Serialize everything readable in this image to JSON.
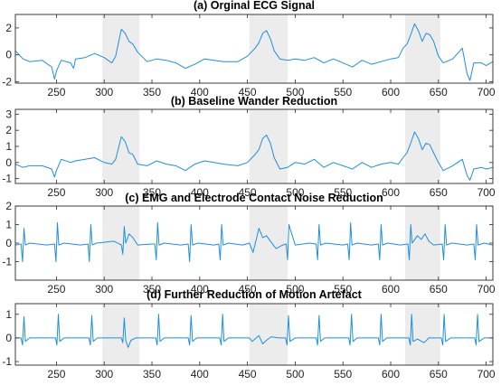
{
  "chart_data": [
    {
      "type": "line",
      "title": "(a) Orginal ECG Signal",
      "xlim": [
        207,
        707
      ],
      "ylim": [
        -2.1,
        3.0
      ],
      "xticks": [
        250,
        300,
        350,
        400,
        450,
        500,
        550,
        600,
        650,
        700
      ],
      "yticks": [
        -2,
        0,
        2
      ],
      "shaded_regions": [
        [
          298,
          337
        ],
        [
          452,
          492
        ],
        [
          615,
          652
        ]
      ],
      "grid": false,
      "series": [
        {
          "color": "#1f8fdc",
          "x": [
            207,
            215,
            222,
            235,
            245,
            248,
            250,
            255,
            265,
            268,
            270,
            280,
            290,
            300,
            308,
            312,
            318,
            322,
            326,
            330,
            335,
            345,
            355,
            365,
            375,
            385,
            395,
            405,
            415,
            425,
            440,
            450,
            458,
            462,
            466,
            470,
            474,
            478,
            484,
            492,
            500,
            510,
            520,
            530,
            540,
            550,
            560,
            570,
            580,
            590,
            600,
            608,
            613,
            617,
            621,
            625,
            629,
            633,
            637,
            641,
            645,
            650,
            655,
            665,
            675,
            680,
            683,
            687,
            695,
            700,
            707
          ],
          "y": [
            0.3,
            -0.3,
            -0.5,
            -0.4,
            -0.9,
            -1.8,
            -1.2,
            -0.4,
            -0.6,
            -1.0,
            -0.3,
            -0.2,
            0.1,
            -0.2,
            -0.6,
            -0.1,
            1.9,
            1.6,
            1.0,
            0.8,
            0.2,
            -0.5,
            -0.3,
            -0.4,
            -0.6,
            -1.0,
            -0.7,
            -0.3,
            -0.4,
            -0.5,
            -0.5,
            -0.1,
            0.5,
            0.9,
            1.6,
            1.8,
            1.2,
            0.3,
            -0.3,
            -0.4,
            -0.3,
            -0.4,
            -0.2,
            -0.6,
            -0.3,
            -0.6,
            -0.9,
            -0.4,
            -0.7,
            -0.5,
            -0.3,
            -0.2,
            0.5,
            0.8,
            1.5,
            2.3,
            1.8,
            1.0,
            1.6,
            1.5,
            1.0,
            -0.1,
            -0.6,
            -0.3,
            0.5,
            -1.4,
            -1.9,
            -0.6,
            -0.6,
            -0.8,
            -0.5
          ]
        }
      ]
    },
    {
      "type": "line",
      "title": "(b) Baseline Wander Reduction",
      "xlim": [
        207,
        707
      ],
      "ylim": [
        -1.3,
        3.3
      ],
      "xticks": [
        250,
        300,
        350,
        400,
        450,
        500,
        550,
        600,
        650,
        700
      ],
      "yticks": [
        -1,
        0,
        1,
        2,
        3
      ],
      "shaded_regions": [
        [
          298,
          337
        ],
        [
          452,
          492
        ],
        [
          615,
          652
        ]
      ],
      "grid": false,
      "series": [
        {
          "color": "#1f8fdc",
          "x": [
            207,
            215,
            222,
            235,
            245,
            248,
            250,
            255,
            265,
            270,
            280,
            290,
            300,
            308,
            312,
            318,
            322,
            326,
            330,
            335,
            345,
            355,
            365,
            375,
            385,
            395,
            405,
            415,
            425,
            440,
            450,
            458,
            462,
            466,
            470,
            474,
            478,
            484,
            492,
            500,
            510,
            520,
            530,
            540,
            550,
            560,
            570,
            580,
            590,
            600,
            608,
            613,
            617,
            621,
            625,
            629,
            633,
            637,
            641,
            645,
            650,
            655,
            665,
            675,
            680,
            683,
            687,
            695,
            700,
            707
          ],
          "y": [
            -0.1,
            -0.3,
            -0.2,
            -0.2,
            -0.4,
            -0.9,
            -0.5,
            0.2,
            0.0,
            0.1,
            0.2,
            0.3,
            0.0,
            -0.1,
            0.2,
            1.6,
            1.3,
            0.6,
            0.5,
            -0.1,
            -0.2,
            0.1,
            -0.1,
            -0.2,
            -0.5,
            -0.1,
            0.1,
            0.0,
            -0.1,
            -0.2,
            0.0,
            0.5,
            0.8,
            1.5,
            1.7,
            1.2,
            0.3,
            -0.4,
            -0.3,
            0.0,
            -0.1,
            0.2,
            -0.3,
            0.0,
            -0.2,
            -0.4,
            0.0,
            -0.3,
            -0.1,
            0.0,
            -0.1,
            0.3,
            0.6,
            1.2,
            1.9,
            1.5,
            0.8,
            1.2,
            1.1,
            0.6,
            0.0,
            -0.5,
            -0.2,
            0.2,
            -0.8,
            -1.1,
            -0.4,
            -0.3,
            -0.4,
            -0.3
          ]
        }
      ]
    },
    {
      "type": "line",
      "title": "(c) EMG and Electrode Contact Noise Reduction",
      "xlim": [
        207,
        707
      ],
      "ylim": [
        -2.0,
        2.0
      ],
      "xticks": [
        250,
        300,
        350,
        400,
        450,
        500,
        550,
        600,
        650,
        700
      ],
      "yticks": [
        -1,
        0,
        1,
        2
      ],
      "shaded_regions": [
        [
          298,
          337
        ],
        [
          452,
          492
        ],
        [
          615,
          652
        ]
      ],
      "grid": false,
      "series": [
        {
          "color": "#1f8fdc",
          "x": [
            207,
            213,
            214.5,
            216,
            217.5,
            222,
            240,
            248,
            249.5,
            251,
            252.5,
            258,
            275,
            283,
            284.5,
            286,
            287.5,
            292,
            310,
            318,
            319.5,
            321,
            322.5,
            326,
            330,
            335,
            350,
            353,
            354.5,
            356,
            357.5,
            363,
            380,
            388,
            389.5,
            391,
            392.5,
            398,
            415,
            420,
            421.5,
            423,
            424.5,
            430,
            445,
            452,
            456,
            462,
            466,
            470,
            474,
            480,
            487,
            490.5,
            492,
            493.5,
            500,
            515,
            522,
            523.5,
            525,
            526.5,
            532,
            550,
            555,
            556.5,
            558,
            559.5,
            565,
            580,
            587,
            588.5,
            590,
            591.5,
            597,
            610,
            618,
            619.5,
            621,
            622.5,
            628,
            632,
            636,
            640,
            645,
            654,
            655.5,
            657,
            658.5,
            664,
            680,
            687,
            688.5,
            690,
            691.5,
            698,
            707
          ],
          "y": [
            -0.1,
            -0.05,
            -1.0,
            0.8,
            -0.1,
            0.0,
            -0.1,
            -0.05,
            -1.0,
            1.1,
            -0.1,
            0.0,
            -0.1,
            -0.05,
            -1.0,
            1.0,
            -0.1,
            0.0,
            0.1,
            -0.1,
            -0.6,
            0.9,
            0.0,
            0.5,
            0.3,
            -0.1,
            -0.05,
            -0.05,
            -0.9,
            1.1,
            -0.1,
            0.0,
            -0.1,
            -0.05,
            -1.0,
            1.0,
            -0.1,
            0.0,
            -0.1,
            -0.05,
            -0.9,
            1.0,
            -0.1,
            0.0,
            -0.1,
            0.0,
            -0.5,
            0.8,
            0.3,
            0.4,
            0.1,
            -0.3,
            -0.1,
            -0.05,
            -0.9,
            1.0,
            -0.1,
            0.0,
            -0.05,
            -0.9,
            1.0,
            -0.1,
            0.0,
            -0.1,
            -0.05,
            -0.9,
            1.1,
            -0.1,
            0.0,
            -0.1,
            -0.05,
            -0.9,
            1.0,
            -0.1,
            0.0,
            -0.1,
            -0.05,
            -0.9,
            1.0,
            0.0,
            0.4,
            0.2,
            0.5,
            0.1,
            -0.1,
            -0.05,
            -0.9,
            1.0,
            -0.1,
            0.0,
            -0.1,
            -0.05,
            -0.9,
            1.0,
            -0.1,
            0.0,
            -0.1
          ]
        }
      ]
    },
    {
      "type": "line",
      "title": "(d) Further Reduction of Motion Artefact",
      "xlim": [
        207,
        707
      ],
      "ylim": [
        -1.15,
        1.45
      ],
      "xticks": [
        250,
        300,
        350,
        400,
        450,
        500,
        550,
        600,
        650,
        700
      ],
      "yticks": [
        -1,
        0,
        1
      ],
      "shaded_regions": [
        [
          298,
          337
        ],
        [
          452,
          492
        ],
        [
          615,
          652
        ]
      ],
      "grid": false,
      "series": [
        {
          "color": "#1f8fdc",
          "x": [
            207,
            213,
            214.5,
            216,
            217.5,
            222,
            240,
            249,
            250.5,
            252,
            253.5,
            258,
            275,
            284,
            285.5,
            287,
            288.5,
            293,
            310,
            318,
            319.5,
            321,
            322.5,
            325,
            328,
            333,
            350,
            354,
            355.5,
            357,
            358.5,
            363,
            380,
            388,
            389.5,
            391,
            392.5,
            397,
            415,
            421,
            422.5,
            424,
            425.5,
            430,
            445,
            452,
            455,
            462,
            466,
            470,
            475,
            482,
            490,
            491.5,
            493,
            494.5,
            500,
            515,
            522,
            523.5,
            525,
            526.5,
            531,
            550,
            556,
            557.5,
            559,
            560.5,
            565,
            580,
            587,
            588.5,
            590,
            591.5,
            596,
            610,
            619,
            620.5,
            622,
            623.5,
            628,
            635,
            640,
            645,
            653,
            654.5,
            656,
            657.5,
            663,
            680,
            688,
            689.5,
            691,
            692.5,
            698,
            707
          ],
          "y": [
            0.0,
            0.0,
            -0.3,
            0.9,
            -0.15,
            0.0,
            0.0,
            0.0,
            -0.3,
            1.0,
            -0.15,
            0.0,
            0.0,
            0.0,
            -0.3,
            0.95,
            -0.15,
            0.0,
            0.0,
            0.0,
            -0.2,
            0.85,
            -0.1,
            -0.4,
            -0.1,
            0.0,
            0.0,
            0.0,
            -0.3,
            1.0,
            -0.15,
            0.0,
            0.0,
            0.0,
            -0.3,
            0.95,
            -0.15,
            0.0,
            0.0,
            0.0,
            -0.3,
            1.0,
            -0.15,
            0.0,
            0.0,
            0.0,
            -0.15,
            0.1,
            -0.25,
            -0.1,
            0.05,
            0.0,
            0.0,
            -0.3,
            0.95,
            -0.15,
            0.0,
            0.0,
            0.0,
            -0.3,
            0.95,
            -0.15,
            0.0,
            0.0,
            0.0,
            -0.3,
            1.0,
            -0.15,
            0.0,
            0.0,
            0.0,
            -0.3,
            1.0,
            -0.15,
            0.0,
            0.0,
            0.0,
            -0.3,
            1.0,
            -0.15,
            -0.05,
            -0.2,
            0.0,
            0.0,
            0.0,
            -0.3,
            1.0,
            -0.15,
            0.0,
            0.0,
            0.0,
            -0.3,
            1.0,
            -0.15,
            0.0,
            0.0
          ]
        }
      ]
    }
  ]
}
